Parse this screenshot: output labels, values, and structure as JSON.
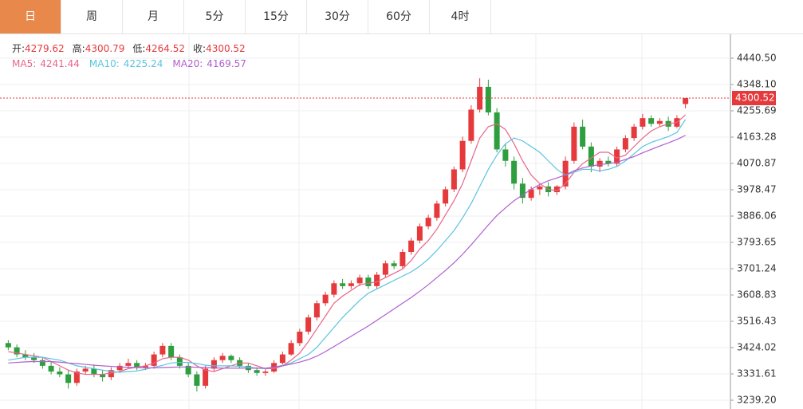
{
  "tabs": [
    "日",
    "周",
    "月",
    "5分",
    "15分",
    "30分",
    "60分",
    "4时"
  ],
  "active_tab": 0,
  "chart_data": {
    "type": "candlestick",
    "ohlc_labels": [
      "开:",
      "高:",
      "低:",
      "收:"
    ],
    "up_color": "#e5393c",
    "down_color": "#2f9e3e",
    "ylim": [
      3208.4,
      4527.3
    ],
    "yticks": [
      {
        "value": 4440.5,
        "label": "4440.50"
      },
      {
        "value": 4348.1,
        "label": "4348.10"
      },
      4255.69,
      4163.28,
      4070.87,
      3978.47,
      3886.06,
      3793.65,
      3701.24,
      3608.83,
      3516.43,
      3424.02,
      3331.61,
      {
        "value": 3239.2,
        "label": "3239.20"
      }
    ],
    "grid": true,
    "open": [
      3440,
      3425,
      3400,
      3390,
      3380,
      3360,
      3340,
      3330,
      3300,
      3340,
      3350,
      3330,
      3320,
      3345,
      3360,
      3370,
      3355,
      3360,
      3400,
      3430,
      3390,
      3360,
      3330,
      3290,
      3350,
      3380,
      3395,
      3380,
      3360,
      3345,
      3335,
      3340,
      3370,
      3400,
      3440,
      3480,
      3530,
      3580,
      3610,
      3650,
      3640,
      3650,
      3670,
      3640,
      3680,
      3720,
      3710,
      3760,
      3800,
      3850,
      3880,
      3930,
      3980,
      4050,
      4150,
      4260,
      4340,
      4250,
      4120,
      4080,
      4000,
      3950,
      3980,
      3990,
      3970,
      3990,
      4080,
      4200,
      4130,
      4060,
      4080,
      4070,
      4120,
      4160,
      4200,
      4230,
      4210,
      4220,
      4200,
      4279.62
    ],
    "high": [
      3450,
      3435,
      3415,
      3405,
      3390,
      3375,
      3355,
      3345,
      3350,
      3360,
      3365,
      3345,
      3355,
      3370,
      3385,
      3380,
      3370,
      3410,
      3440,
      3440,
      3400,
      3370,
      3340,
      3360,
      3390,
      3405,
      3400,
      3390,
      3370,
      3355,
      3350,
      3380,
      3410,
      3450,
      3490,
      3540,
      3590,
      3620,
      3660,
      3665,
      3660,
      3680,
      3680,
      3690,
      3730,
      3730,
      3770,
      3810,
      3860,
      3890,
      3940,
      3990,
      4060,
      4165,
      4275,
      4370,
      4365,
      4265,
      4140,
      4095,
      4020,
      3990,
      3995,
      4005,
      3995,
      4095,
      4215,
      4225,
      4145,
      4090,
      4095,
      4130,
      4170,
      4210,
      4245,
      4240,
      4230,
      4235,
      4240,
      4300.79
    ],
    "low": [
      3415,
      3390,
      3380,
      3370,
      3350,
      3330,
      3320,
      3280,
      3290,
      3330,
      3320,
      3305,
      3310,
      3335,
      3350,
      3345,
      3345,
      3350,
      3390,
      3380,
      3350,
      3320,
      3270,
      3280,
      3340,
      3370,
      3370,
      3350,
      3335,
      3325,
      3325,
      3335,
      3365,
      3395,
      3430,
      3470,
      3520,
      3570,
      3600,
      3630,
      3630,
      3640,
      3630,
      3630,
      3670,
      3700,
      3700,
      3750,
      3790,
      3840,
      3870,
      3920,
      3970,
      4040,
      4140,
      4250,
      4240,
      4110,
      4060,
      3980,
      3930,
      3940,
      3960,
      3955,
      3960,
      3980,
      4070,
      4120,
      4040,
      4040,
      4060,
      4060,
      4110,
      4150,
      4190,
      4200,
      4200,
      4185,
      4195,
      4264.52
    ],
    "close": [
      3425,
      3400,
      3390,
      3380,
      3360,
      3340,
      3330,
      3300,
      3340,
      3350,
      3330,
      3320,
      3345,
      3360,
      3370,
      3355,
      3360,
      3400,
      3430,
      3390,
      3360,
      3330,
      3290,
      3350,
      3380,
      3395,
      3380,
      3360,
      3345,
      3335,
      3340,
      3370,
      3400,
      3440,
      3480,
      3530,
      3580,
      3610,
      3650,
      3640,
      3650,
      3670,
      3640,
      3680,
      3720,
      3710,
      3760,
      3800,
      3850,
      3880,
      3930,
      3980,
      4050,
      4150,
      4260,
      4340,
      4250,
      4120,
      4080,
      4000,
      3950,
      3980,
      3990,
      3970,
      3990,
      4080,
      4200,
      4130,
      4060,
      4080,
      4070,
      4120,
      4160,
      4200,
      4230,
      4210,
      4220,
      4200,
      4230,
      4300.52
    ],
    "series": [
      {
        "name": "MA5",
        "color": "#e8658a",
        "values": [
          3410,
          3405,
          3400,
          3395,
          3390,
          3375,
          3360,
          3345,
          3335,
          3330,
          3330,
          3330,
          3335,
          3340,
          3350,
          3355,
          3360,
          3370,
          3385,
          3390,
          3390,
          3380,
          3360,
          3345,
          3340,
          3350,
          3360,
          3370,
          3370,
          3360,
          3350,
          3350,
          3360,
          3380,
          3405,
          3445,
          3490,
          3535,
          3580,
          3605,
          3625,
          3645,
          3650,
          3655,
          3670,
          3685,
          3700,
          3730,
          3770,
          3800,
          3840,
          3890,
          3940,
          4000,
          4080,
          4160,
          4200,
          4210,
          4190,
          4140,
          4080,
          4030,
          4000,
          3980,
          3975,
          4000,
          4040,
          4070,
          4090,
          4110,
          4110,
          4090,
          4100,
          4130,
          4160,
          4185,
          4200,
          4210,
          4215,
          4241.44
        ]
      },
      {
        "name": "MA10",
        "color": "#5bc3e0",
        "values": [
          3380,
          3385,
          3390,
          3390,
          3390,
          3385,
          3380,
          3370,
          3360,
          3355,
          3350,
          3345,
          3340,
          3338,
          3340,
          3342,
          3348,
          3355,
          3362,
          3370,
          3372,
          3372,
          3368,
          3362,
          3360,
          3360,
          3360,
          3358,
          3356,
          3352,
          3350,
          3355,
          3362,
          3370,
          3385,
          3400,
          3425,
          3460,
          3495,
          3530,
          3560,
          3590,
          3615,
          3630,
          3645,
          3660,
          3675,
          3690,
          3710,
          3735,
          3765,
          3800,
          3835,
          3880,
          3930,
          3990,
          4050,
          4100,
          4140,
          4160,
          4150,
          4130,
          4110,
          4080,
          4050,
          4030,
          4040,
          4050,
          4050,
          4045,
          4050,
          4060,
          4080,
          4105,
          4130,
          4145,
          4155,
          4165,
          4180,
          4225.24
        ]
      },
      {
        "name": "MA20",
        "color": "#b05fcf",
        "values": [
          3370,
          3372,
          3374,
          3375,
          3375,
          3375,
          3373,
          3370,
          3368,
          3365,
          3362,
          3360,
          3358,
          3356,
          3355,
          3354,
          3353,
          3353,
          3354,
          3355,
          3356,
          3356,
          3355,
          3354,
          3353,
          3352,
          3352,
          3352,
          3352,
          3352,
          3352,
          3355,
          3360,
          3366,
          3373,
          3382,
          3394,
          3410,
          3428,
          3446,
          3464,
          3482,
          3500,
          3520,
          3540,
          3560,
          3580,
          3600,
          3622,
          3645,
          3670,
          3695,
          3722,
          3752,
          3785,
          3820,
          3855,
          3888,
          3915,
          3940,
          3960,
          3980,
          3997,
          4010,
          4020,
          4030,
          4045,
          4055,
          4062,
          4067,
          4070,
          4075,
          4085,
          4095,
          4108,
          4120,
          4132,
          4143,
          4155,
          4169.57
        ]
      }
    ]
  }
}
